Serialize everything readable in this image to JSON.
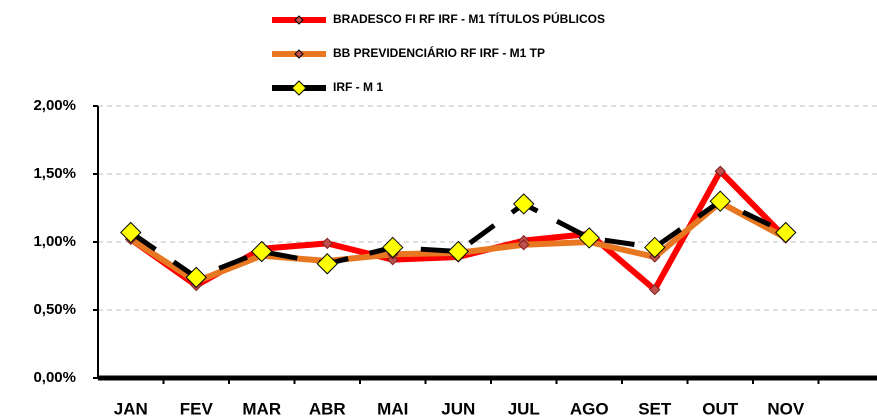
{
  "chart_data": {
    "type": "line",
    "categories": [
      "JAN",
      "FEV",
      "MAR",
      "ABR",
      "MAI",
      "JUN",
      "JUL",
      "AGO",
      "SET",
      "OUT",
      "NOV",
      null
    ],
    "series": [
      {
        "name": "BRADESCO FI RF IRF - M1 TÍTULOS PÚBLICOS",
        "color": "#ff0000",
        "marker_color": "#c0504d",
        "values": [
          1.02,
          0.68,
          0.95,
          0.99,
          0.87,
          0.89,
          1.01,
          1.06,
          0.65,
          1.52,
          1.03,
          null
        ]
      },
      {
        "name": "BB PREVIDENCIÁRIO RF IRF - M1 TP",
        "color": "#e87722",
        "marker_color": "#c0504d",
        "values": [
          1.02,
          0.71,
          0.9,
          0.86,
          0.91,
          0.92,
          0.98,
          1.0,
          0.89,
          1.29,
          1.03,
          null
        ]
      },
      {
        "name": "IRF - M 1",
        "color": "#000000",
        "marker_color": "#ffff00",
        "dashed": true,
        "values": [
          1.07,
          0.74,
          0.93,
          0.84,
          0.96,
          0.93,
          1.28,
          1.03,
          0.96,
          1.3,
          1.07,
          null
        ]
      }
    ],
    "ylim": [
      0,
      2
    ],
    "yticks": [
      {
        "value": 0,
        "label": "0,00%"
      },
      {
        "value": 0.5,
        "label": "0,50%"
      },
      {
        "value": 1,
        "label": "1,00%"
      },
      {
        "value": 1.5,
        "label": "1,50%"
      },
      {
        "value": 2,
        "label": "2,00%"
      }
    ],
    "grid": true,
    "legend": "top"
  }
}
